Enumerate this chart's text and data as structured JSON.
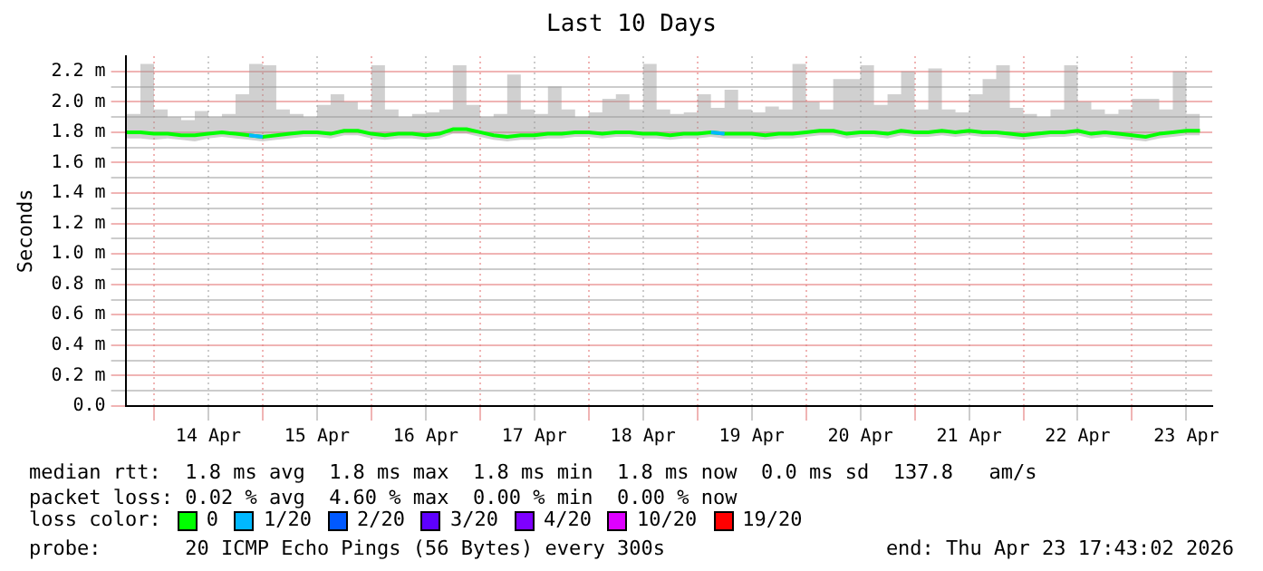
{
  "chart_data": {
    "type": "line",
    "title": "Last 10 Days",
    "ylabel": "Seconds",
    "legend_title": "loss color:",
    "legend": "bottom",
    "grid": true,
    "marker": "none",
    "line_style": "solid",
    "xlim": [
      "2026-04-13T17:43",
      "2026-04-23T17:43"
    ],
    "xticks": [
      {
        "value": "2026-04-14T00:00",
        "label": null
      },
      {
        "value": "2026-04-14T12:00",
        "label": "14 Apr"
      },
      {
        "value": "2026-04-15T00:00",
        "label": null
      },
      {
        "value": "2026-04-15T12:00",
        "label": "15 Apr"
      },
      {
        "value": "2026-04-16T00:00",
        "label": null
      },
      {
        "value": "2026-04-16T12:00",
        "label": "16 Apr"
      },
      {
        "value": "2026-04-17T00:00",
        "label": null
      },
      {
        "value": "2026-04-17T12:00",
        "label": "17 Apr"
      },
      {
        "value": "2026-04-18T00:00",
        "label": null
      },
      {
        "value": "2026-04-18T12:00",
        "label": "18 Apr"
      },
      {
        "value": "2026-04-19T00:00",
        "label": null
      },
      {
        "value": "2026-04-19T12:00",
        "label": "19 Apr"
      },
      {
        "value": "2026-04-20T00:00",
        "label": null
      },
      {
        "value": "2026-04-20T12:00",
        "label": "20 Apr"
      },
      {
        "value": "2026-04-21T00:00",
        "label": null
      },
      {
        "value": "2026-04-21T12:00",
        "label": "21 Apr"
      },
      {
        "value": "2026-04-22T00:00",
        "label": null
      },
      {
        "value": "2026-04-22T12:00",
        "label": "22 Apr"
      },
      {
        "value": "2026-04-23T00:00",
        "label": null
      },
      {
        "value": "2026-04-23T12:00",
        "label": "23 Apr"
      }
    ],
    "ylim": [
      0,
      2.3
    ],
    "yticks": [
      {
        "value": 0,
        "label": "0.0"
      },
      {
        "value": 0.1,
        "label": null
      },
      {
        "value": 0.2,
        "label": "0.2 m"
      },
      {
        "value": 0.3,
        "label": null
      },
      {
        "value": 0.4,
        "label": "0.4 m"
      },
      {
        "value": 0.5,
        "label": null
      },
      {
        "value": 0.6,
        "label": "0.6 m"
      },
      {
        "value": 0.7,
        "label": null
      },
      {
        "value": 0.8,
        "label": "0.8 m"
      },
      {
        "value": 0.9,
        "label": null
      },
      {
        "value": 1.0,
        "label": "1.0 m"
      },
      {
        "value": 1.1,
        "label": null
      },
      {
        "value": 1.2,
        "label": "1.2 m"
      },
      {
        "value": 1.3,
        "label": null
      },
      {
        "value": 1.4,
        "label": "1.4 m"
      },
      {
        "value": 1.5,
        "label": null
      },
      {
        "value": 1.6,
        "label": "1.6 m"
      },
      {
        "value": 1.7,
        "label": null
      },
      {
        "value": 1.8,
        "label": "1.8 m"
      },
      {
        "value": 1.9,
        "label": null
      },
      {
        "value": 2.0,
        "label": "2.0 m"
      },
      {
        "value": 2.1,
        "label": null
      },
      {
        "value": 2.2,
        "label": "2.2 m"
      }
    ],
    "x": [
      "2026-04-13T18:00",
      "2026-04-13T21:00",
      "2026-04-14T00:00",
      "2026-04-14T03:00",
      "2026-04-14T06:00",
      "2026-04-14T09:00",
      "2026-04-14T12:00",
      "2026-04-14T15:00",
      "2026-04-14T18:00",
      "2026-04-14T21:00",
      "2026-04-15T00:00",
      "2026-04-15T03:00",
      "2026-04-15T06:00",
      "2026-04-15T09:00",
      "2026-04-15T12:00",
      "2026-04-15T15:00",
      "2026-04-15T18:00",
      "2026-04-15T21:00",
      "2026-04-16T00:00",
      "2026-04-16T03:00",
      "2026-04-16T06:00",
      "2026-04-16T09:00",
      "2026-04-16T12:00",
      "2026-04-16T15:00",
      "2026-04-16T18:00",
      "2026-04-16T21:00",
      "2026-04-17T00:00",
      "2026-04-17T03:00",
      "2026-04-17T06:00",
      "2026-04-17T09:00",
      "2026-04-17T12:00",
      "2026-04-17T15:00",
      "2026-04-17T18:00",
      "2026-04-17T21:00",
      "2026-04-18T00:00",
      "2026-04-18T03:00",
      "2026-04-18T06:00",
      "2026-04-18T09:00",
      "2026-04-18T12:00",
      "2026-04-18T15:00",
      "2026-04-18T18:00",
      "2026-04-18T21:00",
      "2026-04-19T00:00",
      "2026-04-19T03:00",
      "2026-04-19T06:00",
      "2026-04-19T09:00",
      "2026-04-19T12:00",
      "2026-04-19T15:00",
      "2026-04-19T18:00",
      "2026-04-19T21:00",
      "2026-04-20T00:00",
      "2026-04-20T03:00",
      "2026-04-20T06:00",
      "2026-04-20T09:00",
      "2026-04-20T12:00",
      "2026-04-20T15:00",
      "2026-04-20T18:00",
      "2026-04-20T21:00",
      "2026-04-21T00:00",
      "2026-04-21T03:00",
      "2026-04-21T06:00",
      "2026-04-21T09:00",
      "2026-04-21T12:00",
      "2026-04-21T15:00",
      "2026-04-21T18:00",
      "2026-04-21T21:00",
      "2026-04-22T00:00",
      "2026-04-22T03:00",
      "2026-04-22T06:00",
      "2026-04-22T09:00",
      "2026-04-22T12:00",
      "2026-04-22T15:00",
      "2026-04-22T18:00",
      "2026-04-22T21:00",
      "2026-04-23T00:00",
      "2026-04-23T03:00",
      "2026-04-23T06:00",
      "2026-04-23T09:00",
      "2026-04-23T12:00",
      "2026-04-23T15:00"
    ],
    "series": [
      {
        "name": "0",
        "color": "#00ff00",
        "values": [
          1.8,
          1.8,
          1.79,
          1.79,
          1.78,
          1.78,
          1.79,
          1.8,
          1.79,
          1.78,
          1.77,
          1.78,
          1.79,
          1.8,
          1.8,
          1.79,
          1.81,
          1.81,
          1.79,
          1.78,
          1.79,
          1.79,
          1.78,
          1.79,
          1.82,
          1.82,
          1.8,
          1.78,
          1.77,
          1.78,
          1.78,
          1.79,
          1.79,
          1.8,
          1.8,
          1.79,
          1.8,
          1.8,
          1.79,
          1.79,
          1.78,
          1.79,
          1.79,
          1.8,
          1.79,
          1.79,
          1.79,
          1.78,
          1.79,
          1.79,
          1.8,
          1.81,
          1.81,
          1.79,
          1.8,
          1.8,
          1.79,
          1.81,
          1.8,
          1.8,
          1.81,
          1.8,
          1.81,
          1.8,
          1.8,
          1.79,
          1.78,
          1.79,
          1.8,
          1.8,
          1.81,
          1.79,
          1.8,
          1.79,
          1.78,
          1.77,
          1.79,
          1.8,
          1.81,
          1.81
        ],
        "lower": [
          1.76,
          1.76,
          1.75,
          1.76,
          1.75,
          1.74,
          1.76,
          1.77,
          1.76,
          1.75,
          1.74,
          1.75,
          1.76,
          1.77,
          1.77,
          1.76,
          1.78,
          1.78,
          1.76,
          1.75,
          1.76,
          1.76,
          1.75,
          1.76,
          1.79,
          1.79,
          1.77,
          1.75,
          1.74,
          1.75,
          1.75,
          1.76,
          1.76,
          1.77,
          1.77,
          1.76,
          1.77,
          1.77,
          1.76,
          1.76,
          1.75,
          1.76,
          1.76,
          1.77,
          1.76,
          1.76,
          1.76,
          1.75,
          1.76,
          1.76,
          1.77,
          1.78,
          1.78,
          1.76,
          1.77,
          1.77,
          1.76,
          1.78,
          1.77,
          1.77,
          1.78,
          1.77,
          1.78,
          1.77,
          1.77,
          1.76,
          1.75,
          1.76,
          1.77,
          1.77,
          1.78,
          1.76,
          1.77,
          1.76,
          1.75,
          1.74,
          1.76,
          1.77,
          1.78,
          1.78
        ],
        "upper": [
          1.92,
          2.25,
          1.95,
          1.9,
          1.88,
          1.94,
          1.9,
          1.92,
          2.05,
          2.25,
          2.24,
          1.95,
          1.92,
          1.9,
          1.98,
          2.05,
          2.0,
          1.95,
          2.24,
          1.95,
          1.9,
          1.92,
          1.93,
          1.95,
          2.24,
          1.98,
          1.9,
          1.92,
          2.18,
          1.95,
          1.92,
          2.1,
          1.95,
          1.9,
          1.93,
          2.02,
          2.05,
          1.95,
          2.25,
          1.95,
          1.92,
          1.93,
          2.05,
          1.96,
          2.08,
          1.95,
          1.93,
          1.97,
          1.95,
          2.25,
          2.0,
          1.95,
          2.15,
          2.15,
          2.24,
          1.98,
          2.05,
          2.2,
          1.95,
          2.22,
          1.95,
          1.93,
          2.05,
          2.15,
          2.24,
          1.96,
          1.92,
          1.9,
          1.95,
          2.24,
          2.0,
          1.95,
          1.92,
          1.95,
          2.02,
          2.02,
          1.95,
          2.2,
          1.92,
          2.0
        ]
      },
      {
        "name": "1/20",
        "color": "#00b8ff",
        "values": [
          null,
          null,
          null,
          null,
          null,
          null,
          null,
          null,
          null,
          1.78,
          1.77,
          null,
          null,
          null,
          null,
          null,
          null,
          null,
          null,
          null,
          null,
          null,
          null,
          null,
          null,
          null,
          null,
          null,
          null,
          null,
          null,
          null,
          null,
          null,
          null,
          null,
          null,
          null,
          null,
          null,
          null,
          null,
          null,
          1.8,
          1.79,
          null,
          null,
          null,
          null,
          null,
          null,
          null,
          null,
          null,
          null,
          null,
          null,
          null,
          null,
          null,
          null,
          null,
          null,
          null,
          null,
          null,
          null,
          null,
          null,
          null,
          null,
          null,
          null,
          null,
          null,
          null,
          null,
          null,
          null,
          null
        ]
      },
      {
        "name": "2/20",
        "color": "#0059ff",
        "values": [
          null,
          null,
          null,
          null,
          null,
          null,
          null,
          null,
          null,
          null,
          null,
          null,
          null,
          null,
          null,
          null,
          null,
          null,
          null,
          null,
          null,
          null,
          null,
          null,
          null,
          null,
          null,
          null,
          null,
          null,
          null,
          null,
          null,
          null,
          null,
          null,
          null,
          null,
          null,
          null,
          null,
          null,
          null,
          null,
          null,
          null,
          null,
          null,
          null,
          null,
          null,
          null,
          null,
          null,
          null,
          null,
          null,
          null,
          null,
          null,
          null,
          null,
          null,
          null,
          null,
          null,
          null,
          null,
          null,
          null,
          null,
          null,
          null,
          null,
          null,
          null,
          null,
          null,
          null,
          null
        ]
      },
      {
        "name": "3/20",
        "color": "#5e00ff",
        "values": [
          null,
          null,
          null,
          null,
          null,
          null,
          null,
          null,
          null,
          null,
          null,
          null,
          null,
          null,
          null,
          null,
          null,
          null,
          null,
          null,
          null,
          null,
          null,
          null,
          null,
          null,
          null,
          null,
          null,
          null,
          null,
          null,
          null,
          null,
          null,
          null,
          null,
          null,
          null,
          null,
          null,
          null,
          null,
          null,
          null,
          null,
          null,
          null,
          null,
          null,
          null,
          null,
          null,
          null,
          null,
          null,
          null,
          null,
          null,
          null,
          null,
          null,
          null,
          null,
          null,
          null,
          null,
          null,
          null,
          null,
          null,
          null,
          null,
          null,
          null,
          null,
          null,
          null,
          null,
          null
        ]
      },
      {
        "name": "4/20",
        "color": "#7e00ff",
        "values": [
          null,
          null,
          null,
          null,
          null,
          null,
          null,
          null,
          null,
          null,
          null,
          null,
          null,
          null,
          null,
          null,
          null,
          null,
          null,
          null,
          null,
          null,
          null,
          null,
          null,
          null,
          null,
          null,
          null,
          null,
          null,
          null,
          null,
          null,
          null,
          null,
          null,
          null,
          null,
          null,
          null,
          null,
          null,
          null,
          null,
          null,
          null,
          null,
          null,
          null,
          null,
          null,
          null,
          null,
          null,
          null,
          null,
          null,
          null,
          null,
          null,
          null,
          null,
          null,
          null,
          null,
          null,
          null,
          null,
          null,
          null,
          null,
          null,
          null,
          null,
          null,
          null,
          null,
          null,
          null
        ]
      },
      {
        "name": "10/20",
        "color": "#dd00ff",
        "values": [
          null,
          null,
          null,
          null,
          null,
          null,
          null,
          null,
          null,
          null,
          null,
          null,
          null,
          null,
          null,
          null,
          null,
          null,
          null,
          null,
          null,
          null,
          null,
          null,
          null,
          null,
          null,
          null,
          null,
          null,
          null,
          null,
          null,
          null,
          null,
          null,
          null,
          null,
          null,
          null,
          null,
          null,
          null,
          null,
          null,
          null,
          null,
          null,
          null,
          null,
          null,
          null,
          null,
          null,
          null,
          null,
          null,
          null,
          null,
          null,
          null,
          null,
          null,
          null,
          null,
          null,
          null,
          null,
          null,
          null,
          null,
          null,
          null,
          null,
          null,
          null,
          null,
          null,
          null,
          null
        ]
      },
      {
        "name": "19/20",
        "color": "#ff0000",
        "values": [
          null,
          null,
          null,
          null,
          null,
          null,
          null,
          null,
          null,
          null,
          null,
          null,
          null,
          null,
          null,
          null,
          null,
          null,
          null,
          null,
          null,
          null,
          null,
          null,
          null,
          null,
          null,
          null,
          null,
          null,
          null,
          null,
          null,
          null,
          null,
          null,
          null,
          null,
          null,
          null,
          null,
          null,
          null,
          null,
          null,
          null,
          null,
          null,
          null,
          null,
          null,
          null,
          null,
          null,
          null,
          null,
          null,
          null,
          null,
          null,
          null,
          null,
          null,
          null,
          null,
          null,
          null,
          null,
          null,
          null,
          null,
          null,
          null,
          null,
          null,
          null,
          null,
          null,
          null,
          null
        ]
      }
    ],
    "annotations": [
      "median rtt:  1.8 ms avg  1.8 ms max  1.8 ms min  1.8 ms now  0.0 ms sd  137.8   am/s",
      "packet loss: 0.02 % avg  4.60 % max  0.00 % min  0.00 % now",
      "probe:       20 ICMP Echo Pings (56 Bytes) every 300s",
      "end: Thu Apr 23 17:43:02 2026"
    ]
  }
}
